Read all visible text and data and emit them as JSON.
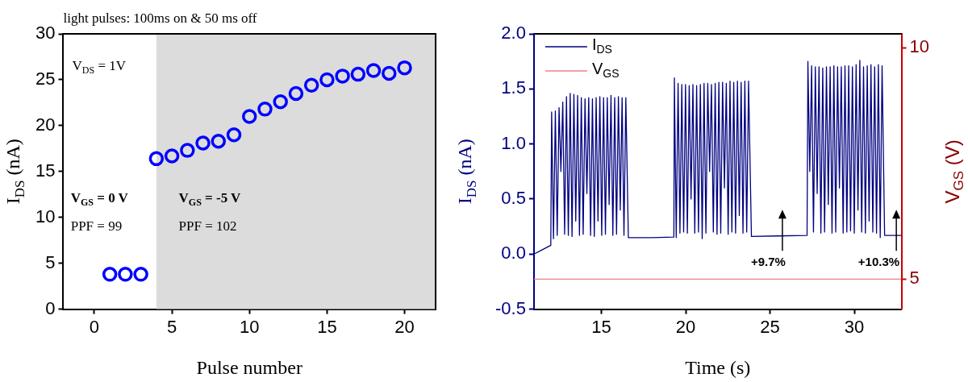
{
  "chart_data": [
    {
      "type": "scatter",
      "title": "light pulses: 100ms on & 50 ms off",
      "xlabel": "Pulse number",
      "ylabel": "I$_{DS}$ (nA)",
      "x": [
        1,
        2,
        3,
        4,
        5,
        6,
        7,
        8,
        9,
        10,
        11,
        12,
        13,
        14,
        15,
        16,
        17,
        18,
        19,
        20
      ],
      "values": [
        3.8,
        3.8,
        3.8,
        16.4,
        16.7,
        17.3,
        18.1,
        18.3,
        19.0,
        21.0,
        21.8,
        22.6,
        23.5,
        24.4,
        25.0,
        25.4,
        25.6,
        26.0,
        25.7,
        26.3
      ],
      "color": "#0000ff",
      "marker": "circle",
      "xlim": [
        -2,
        22
      ],
      "xticks": [
        0,
        5,
        10,
        15,
        20
      ],
      "ylim": [
        0,
        30
      ],
      "yticks": [
        0,
        5,
        10,
        15,
        20,
        25,
        30
      ],
      "bands": [
        {
          "axis": "x",
          "from": 4,
          "to": 22,
          "color": "#dcdcdc"
        }
      ],
      "annotations": [
        "V$_{DS}$ = 1V",
        "V$_{GS}$ = 0 V",
        "PPF = 99",
        "V$_{GS}$ = -5 V",
        "PPF = 102"
      ]
    },
    {
      "type": "line",
      "xlabel": "Time (s)",
      "ylabel": "I$_{DS}$ (nA)",
      "y2label": "V$_{GS}$ (V)",
      "legend": "top left",
      "series": [
        {
          "name": "I$_{DS}$",
          "color": "#000080",
          "x": [
            11,
            11.5,
            12.0,
            12.05,
            12.16,
            12.27,
            12.38,
            12.49,
            12.6,
            12.71,
            12.82,
            12.93,
            13.04,
            13.15,
            13.26,
            13.37,
            13.48,
            13.59,
            13.7,
            13.81,
            13.92,
            14.03,
            14.14,
            14.25,
            14.36,
            14.47,
            14.58,
            14.69,
            14.8,
            14.91,
            15.02,
            15.13,
            15.24,
            15.35,
            15.46,
            15.57,
            15.68,
            15.79,
            15.9,
            16.01,
            16.12,
            16.23,
            16.34,
            16.45,
            16.6,
            18.0,
            19.3,
            19.33,
            19.44,
            19.55,
            19.66,
            19.77,
            19.88,
            19.99,
            20.1,
            20.21,
            20.32,
            20.43,
            20.54,
            20.65,
            20.76,
            20.87,
            20.98,
            21.09,
            21.2,
            21.31,
            21.42,
            21.53,
            21.64,
            21.75,
            21.86,
            21.97,
            22.08,
            22.19,
            22.3,
            22.41,
            22.52,
            22.63,
            22.74,
            22.85,
            22.96,
            23.07,
            23.18,
            23.29,
            23.4,
            23.51,
            23.62,
            23.73,
            23.9,
            25.5,
            27.2,
            27.25,
            27.36,
            27.47,
            27.58,
            27.69,
            27.8,
            27.91,
            28.02,
            28.13,
            28.24,
            28.35,
            28.46,
            28.57,
            28.68,
            28.79,
            28.9,
            29.01,
            29.12,
            29.23,
            29.34,
            29.45,
            29.56,
            29.67,
            29.78,
            29.89,
            30.0,
            30.11,
            30.22,
            30.33,
            30.44,
            30.55,
            30.66,
            30.77,
            30.88,
            30.99,
            31.1,
            31.21,
            31.32,
            31.43,
            31.54,
            31.65,
            31.8,
            32.8
          ],
          "values": [
            0.0,
            0.04,
            0.08,
            1.29,
            0.14,
            1.3,
            0.17,
            1.33,
            0.75,
            1.38,
            0.18,
            1.43,
            0.17,
            1.46,
            0.16,
            1.45,
            0.3,
            1.44,
            0.17,
            1.42,
            0.18,
            1.41,
            0.55,
            1.42,
            0.17,
            1.41,
            0.16,
            1.42,
            0.3,
            1.43,
            0.17,
            1.42,
            0.18,
            1.42,
            0.45,
            1.44,
            0.17,
            1.42,
            0.18,
            1.43,
            0.4,
            1.42,
            0.17,
            1.42,
            0.15,
            0.15,
            0.155,
            1.6,
            0.15,
            1.55,
            0.19,
            1.54,
            0.2,
            1.54,
            0.19,
            1.53,
            0.5,
            1.54,
            0.19,
            1.53,
            0.2,
            1.54,
            0.14,
            1.55,
            0.19,
            1.55,
            0.75,
            1.54,
            0.2,
            1.55,
            0.18,
            1.56,
            0.19,
            1.56,
            0.6,
            1.55,
            0.18,
            1.57,
            0.2,
            1.56,
            0.19,
            1.57,
            0.35,
            1.56,
            0.19,
            1.57,
            0.2,
            1.57,
            0.16,
            0.165,
            0.17,
            1.75,
            0.75,
            1.71,
            0.2,
            1.7,
            0.55,
            1.7,
            0.19,
            1.69,
            0.2,
            1.7,
            0.45,
            1.7,
            0.19,
            1.71,
            0.2,
            1.7,
            0.6,
            1.7,
            0.19,
            1.71,
            0.2,
            1.71,
            0.21,
            1.7,
            0.19,
            1.72,
            0.4,
            1.76,
            0.2,
            1.7,
            0.19,
            1.71,
            0.3,
            1.72,
            0.2,
            1.7,
            0.19,
            1.72,
            0.15,
            1.71,
            0.17,
            0.17
          ]
        },
        {
          "name": "V$_{GS}$",
          "color": "#f08080",
          "axis": "y2",
          "x": [
            11,
            32.8
          ],
          "values": [
            5,
            5
          ]
        }
      ],
      "xlim": [
        11,
        32.8
      ],
      "xticks": [
        15,
        20,
        25,
        30
      ],
      "ylim": [
        -0.5,
        2.0
      ],
      "yticks": [
        -0.5,
        {
          "value": 0,
          "label": "0.0"
        },
        0.5,
        {
          "value": 1,
          "label": "1.0"
        },
        1.5,
        {
          "value": 2,
          "label": "2.0"
        }
      ],
      "y2lim": [
        4.35,
        10.3
      ],
      "y2ticks": [
        5,
        10
      ],
      "annotations": [
        "+9.7%",
        "+10.3%"
      ]
    }
  ]
}
